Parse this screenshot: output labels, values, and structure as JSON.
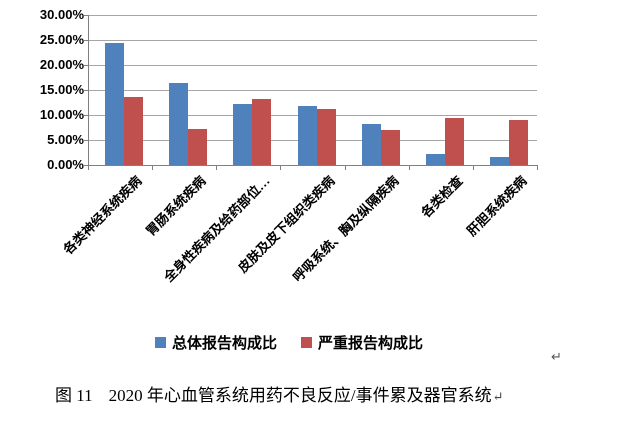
{
  "chart_data": {
    "type": "bar",
    "title": "",
    "categories": [
      "各类神经系统疾病",
      "胃肠系统疾病",
      "全身性疾病及给药部位…",
      "皮肤及皮下组织类疾病",
      "呼吸系统、胸及纵隔疾病",
      "各类检查",
      "肝胆系统疾病"
    ],
    "series": [
      {
        "name": "总体报告构成比",
        "color": "#4F81BD",
        "values": [
          24.5,
          16.4,
          12.3,
          11.9,
          8.3,
          2.3,
          1.7
        ]
      },
      {
        "name": "严重报告构成比",
        "color": "#C0504D",
        "values": [
          13.6,
          7.2,
          13.2,
          11.3,
          7.1,
          9.5,
          9.0
        ]
      }
    ],
    "value_unit": "%",
    "ylim": [
      0,
      30
    ],
    "ytick_step": 5,
    "ytick_labels": [
      "0.00%",
      "5.00%",
      "10.00%",
      "15.00%",
      "20.00%",
      "25.00%",
      "30.00%"
    ],
    "grid": true,
    "legend_position": "bottom",
    "xlabel": "",
    "ylabel": ""
  },
  "legend": {
    "items": [
      {
        "label": "总体报告构成比",
        "color": "#4F81BD"
      },
      {
        "label": "严重报告构成比",
        "color": "#C0504D"
      }
    ]
  },
  "caption": {
    "figure_label": "图 11",
    "text": "2020 年心血管系统用药不良反应/事件累及器官系统",
    "pilcrow": "↵"
  },
  "page": {
    "background": "#FFFFFF",
    "paragraph_mark": "↵"
  }
}
